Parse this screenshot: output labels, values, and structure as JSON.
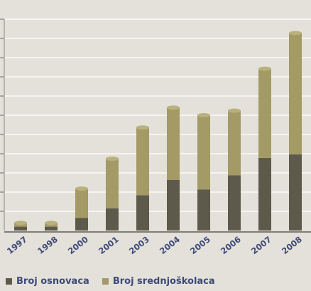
{
  "chart_data": {
    "type": "bar",
    "stacked": true,
    "categories": [
      "1997",
      "1998",
      "2000",
      "2001",
      "2003",
      "2004",
      "2005",
      "2006",
      "2007",
      "2008"
    ],
    "series": [
      {
        "name": "Broj osnovaca",
        "color": "#5d5a4c",
        "values": [
          1,
          1,
          3.3,
          5.8,
          9.2,
          13.2,
          10.7,
          14.4,
          18.9,
          19.8
        ]
      },
      {
        "name": "Broj srednjoškolaca",
        "color": "#a39a66",
        "values": [
          1,
          1,
          7.6,
          12.9,
          17.6,
          18.8,
          19.3,
          16.8,
          23.2,
          31.6
        ]
      }
    ],
    "ylim": [
      0,
      55
    ],
    "yticks": [
      0,
      5,
      10,
      15,
      20,
      25,
      30,
      35,
      40,
      45,
      50,
      55
    ],
    "grid": true,
    "legend": "bottom-left",
    "title": "",
    "xlabel": "",
    "ylabel": ""
  }
}
